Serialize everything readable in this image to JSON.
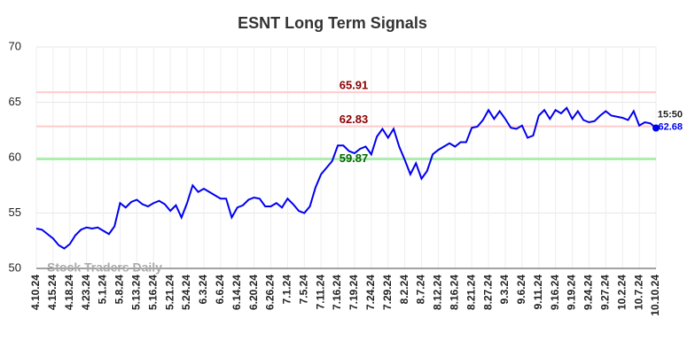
{
  "chart_data": {
    "type": "line",
    "title": "ESNT Long Term Signals",
    "categories": [
      "4.10.24",
      null,
      null,
      "4.15.24",
      null,
      null,
      "4.18.24",
      null,
      null,
      "4.23.24",
      null,
      null,
      "5.1.24",
      null,
      null,
      "5.8.24",
      null,
      null,
      "5.13.24",
      null,
      null,
      "5.16.24",
      null,
      null,
      "5.21.24",
      null,
      null,
      "5.24.24",
      null,
      null,
      "6.3.24",
      null,
      null,
      "6.6.24",
      null,
      null,
      "6.14.24",
      null,
      null,
      "6.20.24",
      null,
      null,
      "6.26.24",
      null,
      null,
      "7.1.24",
      null,
      null,
      "7.5.24",
      null,
      null,
      "7.11.24",
      null,
      null,
      "7.16.24",
      null,
      null,
      "7.19.24",
      null,
      null,
      "7.24.24",
      null,
      null,
      "7.29.24",
      null,
      null,
      "8.2.24",
      null,
      null,
      "8.7.24",
      null,
      null,
      "8.12.24",
      null,
      null,
      "8.16.24",
      null,
      null,
      "8.21.24",
      null,
      null,
      "8.27.24",
      null,
      null,
      "9.3.24",
      null,
      null,
      "9.6.24",
      null,
      null,
      "9.11.24",
      null,
      null,
      "9.16.24",
      null,
      null,
      "9.19.24",
      null,
      null,
      "9.24.24",
      null,
      null,
      "9.27.24",
      null,
      null,
      "10.2.24",
      null,
      null,
      "10.7.24",
      null,
      null,
      "10.10.24"
    ],
    "series": [
      {
        "name": "ESNT",
        "color": "#0000ee",
        "values": [
          53.6,
          53.5,
          53.1,
          52.7,
          52.1,
          51.8,
          52.2,
          53.0,
          53.5,
          53.7,
          53.6,
          53.7,
          53.4,
          53.1,
          53.8,
          55.9,
          55.5,
          56.0,
          56.2,
          55.8,
          55.6,
          55.9,
          56.1,
          55.8,
          55.2,
          55.7,
          54.6,
          55.9,
          57.5,
          56.9,
          57.2,
          56.9,
          56.6,
          56.3,
          56.3,
          54.6,
          55.5,
          55.7,
          56.2,
          56.4,
          56.3,
          55.6,
          55.6,
          55.9,
          55.5,
          56.3,
          55.8,
          55.2,
          55.0,
          55.6,
          57.3,
          58.5,
          59.1,
          59.7,
          61.1,
          61.1,
          60.6,
          60.4,
          60.8,
          61.0,
          60.3,
          61.9,
          62.6,
          61.8,
          62.6,
          61.0,
          59.8,
          58.5,
          59.5,
          58.1,
          58.8,
          60.3,
          60.7,
          61.0,
          61.3,
          61.0,
          61.4,
          61.4,
          62.7,
          62.8,
          63.4,
          64.3,
          63.5,
          64.2,
          63.5,
          62.7,
          62.6,
          62.9,
          61.8,
          62.0,
          63.8,
          64.3,
          63.5,
          64.3,
          64.0,
          64.5,
          63.5,
          64.2,
          63.4,
          63.2,
          63.3,
          63.8,
          64.2,
          63.8,
          63.7,
          63.6,
          63.4,
          64.2,
          62.9,
          63.2,
          63.1,
          62.68
        ]
      }
    ],
    "hlines": [
      {
        "value": 65.91,
        "color": "#ffcccc",
        "label_color": "#8b0000"
      },
      {
        "value": 62.83,
        "color": "#ffcccc",
        "label_color": "#8b0000"
      },
      {
        "value": 59.87,
        "color": "#90ee90",
        "label_color": "#006400"
      }
    ],
    "last_time": "15:50",
    "watermark": "Stock Traders Daily",
    "ylim": [
      50,
      70
    ],
    "yticks": [
      50,
      55,
      60,
      65,
      70
    ],
    "grid": true
  }
}
